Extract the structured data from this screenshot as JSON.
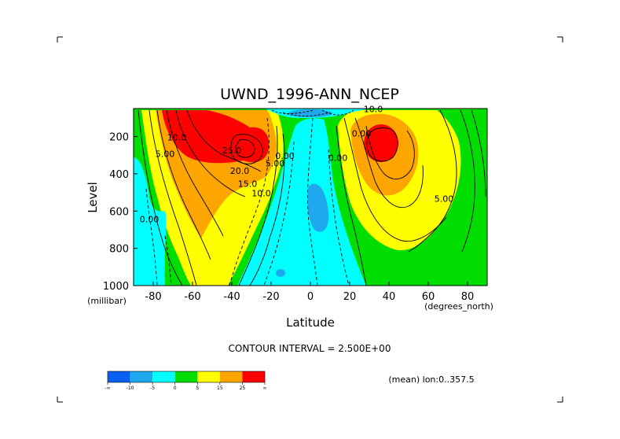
{
  "chart_data": {
    "type": "heatmap",
    "title": "UWND_1996-ANN_NCEP",
    "xlabel": "Latitude",
    "ylabel": "Level",
    "x_units": "(degrees_north)",
    "y_units": "(millibar)",
    "xlim": [
      -90,
      90
    ],
    "ylim": [
      1000,
      50
    ],
    "x_ticks": [
      "-80",
      "-60",
      "-40",
      "-20",
      "0",
      "20",
      "40",
      "60",
      "80"
    ],
    "y_ticks": [
      "200",
      "400",
      "600",
      "800",
      "1000"
    ],
    "contour_interval_text": "CONTOUR INTERVAL = 2.500E+00",
    "mean_text": "(mean) lon:0..357.5",
    "contour_labels": [
      {
        "text": "10.0",
        "lat": -68,
        "lev": 220
      },
      {
        "text": "5.00",
        "lat": -74,
        "lev": 310
      },
      {
        "text": "25.0",
        "lat": -40,
        "lev": 290
      },
      {
        "text": "20.0",
        "lat": -36,
        "lev": 400
      },
      {
        "text": "15.0",
        "lat": -32,
        "lev": 470
      },
      {
        "text": "10.0",
        "lat": -25,
        "lev": 520
      },
      {
        "text": "5.00",
        "lat": -18,
        "lev": 360
      },
      {
        "text": "0.00",
        "lat": -13,
        "lev": 320
      },
      {
        "text": "0.00",
        "lat": -82,
        "lev": 660
      },
      {
        "text": "0.00",
        "lat": 14,
        "lev": 330
      },
      {
        "text": "0.00",
        "lat": 26,
        "lev": 200
      },
      {
        "text": "10.0",
        "lat": 32,
        "lev": 70
      },
      {
        "text": "5.00",
        "lat": 68,
        "lev": 550
      }
    ],
    "jets": [
      {
        "lat": -30,
        "lev": 200,
        "max": 30
      },
      {
        "lat": 35,
        "lev": 200,
        "max": 27.5
      }
    ],
    "colorbar": {
      "boundaries": [
        "-∞",
        "-10",
        "-5",
        "0",
        "5",
        "15",
        "25",
        "∞"
      ],
      "colors": [
        "#0a5ff5",
        "#1fa8ee",
        "#00ffff",
        "#00dd00",
        "#ffff00",
        "#ffa500",
        "#ff0000"
      ]
    }
  }
}
